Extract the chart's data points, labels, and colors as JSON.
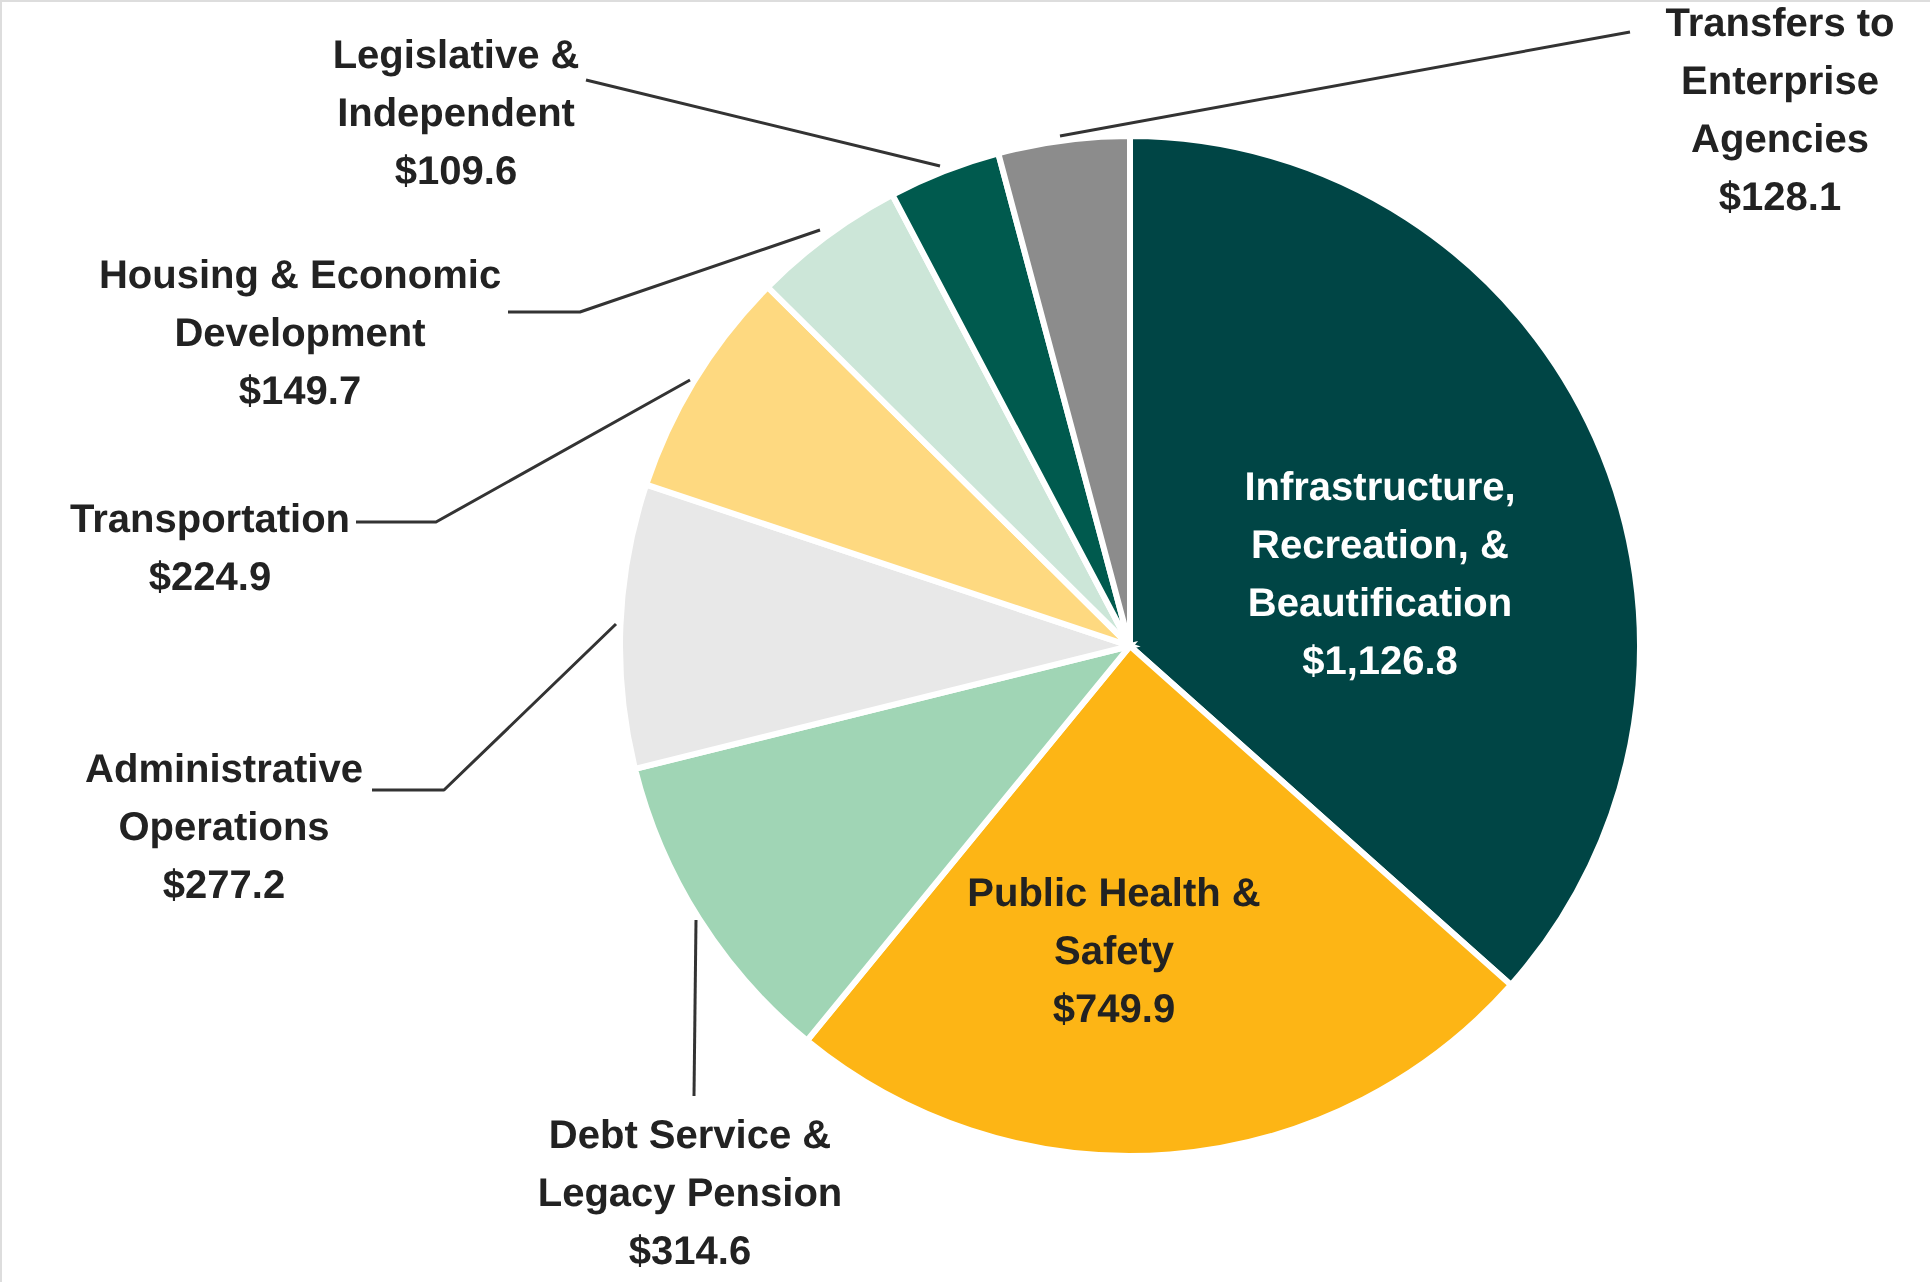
{
  "chart_data": {
    "type": "pie",
    "categories": [
      "Infrastructure,\nRecreation, &\nBeautification",
      "Public Health &\nSafety",
      "Debt Service &\nLegacy Pension",
      "Administrative\nOperations",
      "Transportation",
      "Housing & Economic\nDevelopment",
      "Legislative &\nIndependent",
      "Transfers to\nEnterprise\nAgencies"
    ],
    "values": [
      1126.8,
      749.9,
      314.6,
      277.2,
      224.9,
      149.7,
      109.6,
      128.1
    ],
    "value_labels": [
      "$1,126.8",
      "$749.9",
      "$314.6",
      "$277.2",
      "$224.9",
      "$149.7",
      "$109.6",
      "$128.1"
    ],
    "colors": [
      "#004545",
      "#fdb515",
      "#a0d5b5",
      "#e8e8e8",
      "#fed980",
      "#cce6d8",
      "#005a4e",
      "#8c8c8c"
    ]
  }
}
